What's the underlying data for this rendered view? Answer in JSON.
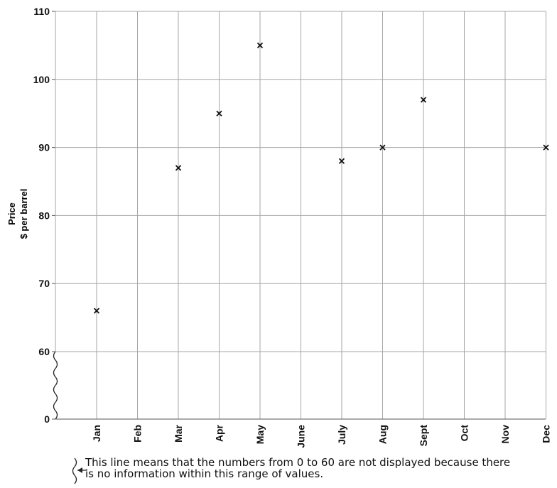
{
  "chart_data": {
    "type": "scatter",
    "title": "",
    "xlabel": "",
    "ylabel_lines": [
      "Price",
      "$ per barrel"
    ],
    "categories": [
      "Jan",
      "Feb",
      "Mar",
      "Apr",
      "May",
      "June",
      "July",
      "Aug",
      "Sept",
      "Oct",
      "Nov",
      "Dec"
    ],
    "y_ticks": [
      "110",
      "100",
      "90",
      "80",
      "70",
      "60",
      "0"
    ],
    "y_axis_break": {
      "from": 0,
      "to": 60
    },
    "ylim": [
      60,
      110
    ],
    "grid": true,
    "marker": "x",
    "series": [
      {
        "points": [
          {
            "x": "Jan",
            "y": 66
          },
          {
            "x": "Mar",
            "y": 87
          },
          {
            "x": "Apr",
            "y": 95
          },
          {
            "x": "May",
            "y": 105
          },
          {
            "x": "July",
            "y": 88
          },
          {
            "x": "Aug",
            "y": 90
          },
          {
            "x": "Sept",
            "y": 97
          },
          {
            "x": "Dec",
            "y": 90
          }
        ]
      }
    ]
  },
  "note": {
    "line1": "This line means that the numbers from 0 to 60 are not displayed because there",
    "line2": "is no information within this range of values."
  }
}
